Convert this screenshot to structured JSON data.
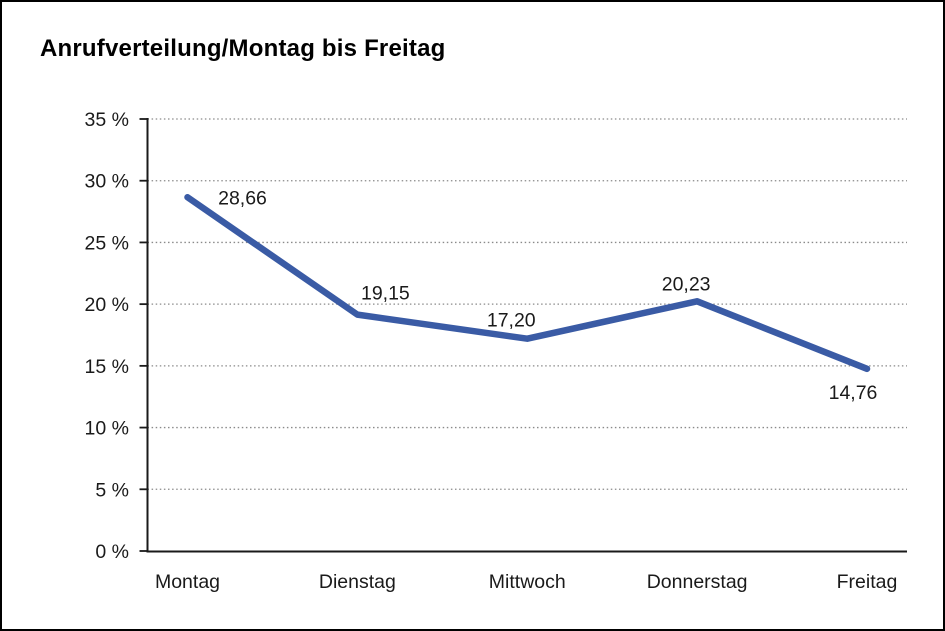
{
  "title": "Anrufverteilung/Montag bis Freitag",
  "chart_data": {
    "type": "line",
    "title": "Anrufverteilung/Montag bis Freitag",
    "categories": [
      "Montag",
      "Dienstag",
      "Mittwoch",
      "Donnerstag",
      "Freitag"
    ],
    "values": [
      28.66,
      19.15,
      17.2,
      20.23,
      14.76
    ],
    "value_labels": [
      "28,66",
      "19,15",
      "17,20",
      "20,23",
      "14,76"
    ],
    "series_name": "Anrufverteilung",
    "xlabel": "",
    "ylabel": "",
    "y_ticks": [
      "0 %",
      "5 %",
      "10 %",
      "15 %",
      "20 %",
      "25 %",
      "30 %",
      "35 %"
    ],
    "y_tick_values": [
      0,
      5,
      10,
      15,
      20,
      25,
      30,
      35
    ],
    "ylim": [
      0,
      35
    ],
    "grid": "horizontal-dotted",
    "legend": "none",
    "line_color": "#3A5BA5",
    "axis_color": "#1a1a1a",
    "gridline_color": "#8a8a8a",
    "decimal_style": "comma"
  }
}
